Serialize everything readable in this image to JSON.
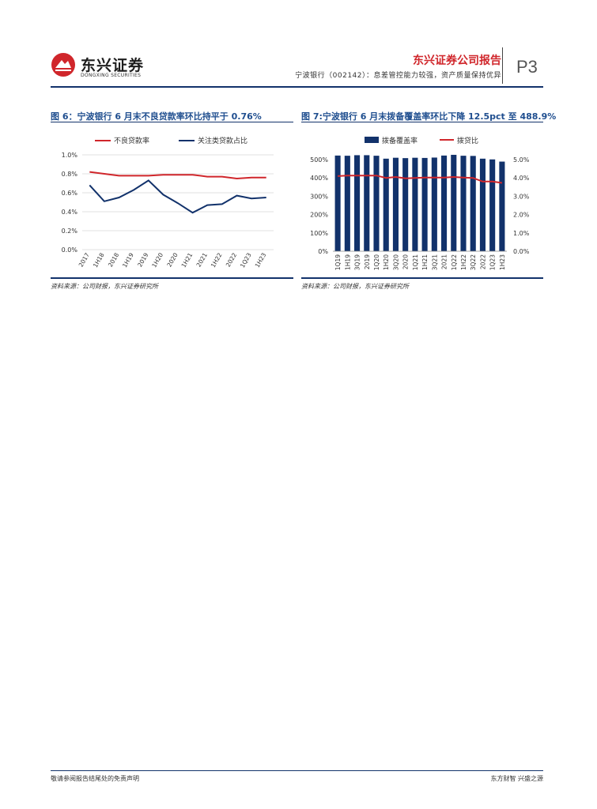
{
  "header": {
    "logo_cn": "东兴证券",
    "logo_en": "DONGXING SECURITIES",
    "brand": "东兴证券公司报告",
    "subtitle": "宁波银行（002142）：息差管控能力较强，资产质量保持优异",
    "page": "P3"
  },
  "colors": {
    "navy": "#12326b",
    "red": "#d0262b",
    "title_blue": "#1f4e8f"
  },
  "figures": [
    {
      "title": "图 6：宁波银行 6 月末不良贷款率环比持平于 0.76%",
      "source": "资料来源：公司财报，东兴证券研究所"
    },
    {
      "title": "图 7:宁波银行 6 月末拨备覆盖率环比下降 12.5pct 至 488.9%",
      "source": "资料来源：公司财报，东兴证券研究所"
    }
  ],
  "chart_data": [
    {
      "type": "line",
      "categories": [
        "2017",
        "1H18",
        "2018",
        "1H19",
        "2019",
        "1H20",
        "2020",
        "1H21",
        "2021",
        "1H22",
        "2022",
        "1Q23",
        "1H23"
      ],
      "series": [
        {
          "name": "不良贷款率",
          "values": [
            0.82,
            0.8,
            0.78,
            0.78,
            0.78,
            0.79,
            0.79,
            0.79,
            0.77,
            0.77,
            0.75,
            0.76,
            0.76
          ],
          "color": "#d0262b"
        },
        {
          "name": "关注类贷款占比",
          "values": [
            0.68,
            0.51,
            0.55,
            0.63,
            0.73,
            0.58,
            0.49,
            0.39,
            0.47,
            0.48,
            0.57,
            0.54,
            0.55
          ],
          "color": "#12326b"
        }
      ],
      "ylim": [
        0,
        1.0
      ],
      "yticks": [
        "0.0%",
        "0.2%",
        "0.4%",
        "0.6%",
        "0.8%",
        "1.0%"
      ],
      "legend": "top",
      "grid": true
    },
    {
      "type": "bar",
      "categories": [
        "1Q19",
        "1H19",
        "3Q19",
        "2019",
        "1Q20",
        "1H20",
        "3Q20",
        "2020",
        "1Q21",
        "1H21",
        "3Q21",
        "2021",
        "1Q22",
        "1H22",
        "3Q22",
        "2022",
        "1Q23",
        "1H23"
      ],
      "series": [
        {
          "name": "拨备覆盖率",
          "type": "bar",
          "axis": "left",
          "values": [
            522,
            521,
            524,
            524,
            521,
            505,
            510,
            508,
            510,
            509,
            511,
            522,
            526,
            521,
            520,
            505,
            501,
            489
          ],
          "color": "#12326b"
        },
        {
          "name": "拨贷比",
          "type": "line",
          "axis": "right",
          "values": [
            4.1,
            4.13,
            4.13,
            4.13,
            4.13,
            4.0,
            4.05,
            3.98,
            4.0,
            4.02,
            4.02,
            4.02,
            4.05,
            4.02,
            4.0,
            3.8,
            3.8,
            3.73
          ],
          "color": "#d0262b"
        }
      ],
      "ylim_left": [
        0,
        500
      ],
      "ylim_right": [
        0,
        5.0
      ],
      "yticks_left": [
        "0%",
        "100%",
        "200%",
        "300%",
        "400%",
        "500%"
      ],
      "yticks_right": [
        "0.0%",
        "1.0%",
        "2.0%",
        "3.0%",
        "4.0%",
        "5.0%"
      ],
      "legend": "top",
      "grid": false
    }
  ],
  "footer": {
    "left": "敬请参阅报告结尾处的免责声明",
    "right": "东方财智 兴盛之源"
  }
}
